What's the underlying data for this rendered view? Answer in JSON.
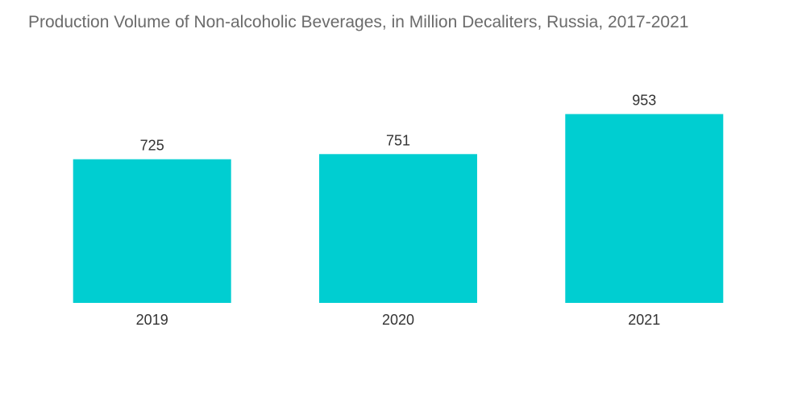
{
  "chart_data": {
    "type": "bar",
    "title": "Production Volume of Non-alcoholic Beverages, in Million Decaliters, Russia, 2017-2021",
    "categories": [
      "2019",
      "2020",
      "2021"
    ],
    "values": [
      725,
      751,
      953
    ],
    "xlabel": "",
    "ylabel": "",
    "ylim": [
      0,
      1000
    ],
    "grid": false,
    "legend": "none",
    "bar_color": "#00ced1"
  }
}
